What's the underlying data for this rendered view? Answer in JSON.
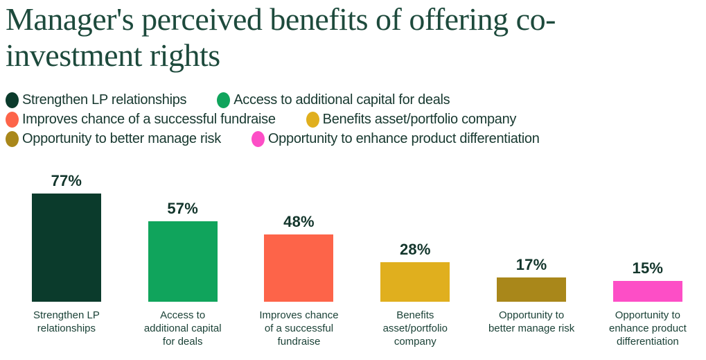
{
  "page": {
    "background": "#ffffff",
    "title_color": "#1d4a3c",
    "text_color": "#17382f"
  },
  "title": {
    "full": "Manager's perceived benefits of offering co-investment rights",
    "lines": [
      "Manager's perceived benefits of offering co-",
      "investment rights"
    ]
  },
  "legend": {
    "items": [
      {
        "label": "Strengthen LP relationships",
        "color": "#0b3b2c"
      },
      {
        "label": "Access to additional capital for deals",
        "color": "#10a45c"
      },
      {
        "label": "Improves chance of a successful fundraise",
        "color": "#fd6449"
      },
      {
        "label": "Benefits asset/portfolio company",
        "color": "#e0af1e"
      },
      {
        "label": "Opportunity to better manage risk",
        "color": "#a9871a"
      },
      {
        "label": "Opportunity to enhance product differentiation",
        "color": "#fd4ec6"
      }
    ]
  },
  "chart_data": {
    "type": "bar",
    "title": "Manager's perceived benefits of offering co-investment rights",
    "categories": [
      "Strengthen LP relationships",
      "Access to additional capital for deals",
      "Improves chance of a successful fundraise",
      "Benefits asset/portfolio company",
      "Opportunity to better manage risk",
      "Opportunity to enhance product differentiation"
    ],
    "values": [
      77,
      57,
      48,
      28,
      17,
      15
    ],
    "data_labels": [
      "77%",
      "57%",
      "48%",
      "28%",
      "17%",
      "15%"
    ],
    "unit": "%",
    "xlabel": "",
    "ylabel": "",
    "ylim": [
      0,
      100
    ],
    "grid": false,
    "axis_lines": false,
    "legend_position": "top",
    "bar_colors": [
      "#0b3b2c",
      "#10a45c",
      "#fd6449",
      "#e0af1e",
      "#a9871a",
      "#fd4ec6"
    ]
  },
  "bars": [
    {
      "value": 77,
      "value_label": "77%",
      "label": "Strengthen LP\nrelationships",
      "color": "#0b3b2c"
    },
    {
      "value": 57,
      "value_label": "57%",
      "label": "Access to\nadditional capital\nfor deals",
      "color": "#10a45c"
    },
    {
      "value": 48,
      "value_label": "48%",
      "label": "Improves chance\nof a successful\nfundraise",
      "color": "#fd6449"
    },
    {
      "value": 28,
      "value_label": "28%",
      "label": "Benefits\nasset/portfolio\ncompany",
      "color": "#e0af1e"
    },
    {
      "value": 17,
      "value_label": "17%",
      "label": "Opportunity to\nbetter manage risk",
      "color": "#a9871a"
    },
    {
      "value": 15,
      "value_label": "15%",
      "label": "Opportunity to\nenhance product\ndifferentiation",
      "color": "#fd4ec6"
    }
  ]
}
